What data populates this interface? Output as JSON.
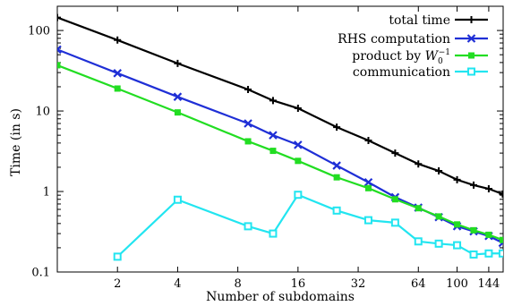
{
  "chart_data": {
    "type": "line",
    "title": "",
    "xlabel": "Number of subdomains",
    "ylabel": "Time (in s)",
    "xscale": "log",
    "yscale": "log",
    "xlim": [
      1,
      170
    ],
    "ylim": [
      0.1,
      200
    ],
    "xticks": [
      2,
      4,
      8,
      16,
      32,
      64,
      100,
      144
    ],
    "yticks": [
      0.1,
      1,
      10,
      100
    ],
    "ytick_labels": [
      "0.1",
      "1",
      "10",
      "100"
    ],
    "legend_position": "top-right",
    "grid": false,
    "series": [
      {
        "name": "total time",
        "color": "#000000",
        "marker": "plus",
        "x": [
          1,
          2,
          4,
          9,
          12,
          16,
          25,
          36,
          49,
          64,
          81,
          100,
          121,
          144,
          169
        ],
        "y": [
          145,
          76,
          39,
          18.5,
          13.5,
          10.8,
          6.3,
          4.3,
          3.0,
          2.2,
          1.8,
          1.4,
          1.2,
          1.08,
          0.93
        ]
      },
      {
        "name": "RHS computation",
        "color": "#1f2fd6",
        "marker": "x",
        "x": [
          1,
          2,
          4,
          9,
          12,
          16,
          25,
          36,
          49,
          64,
          81,
          100,
          121,
          144,
          169
        ],
        "y": [
          58,
          29.5,
          15,
          7.0,
          5.0,
          3.8,
          2.1,
          1.3,
          0.85,
          0.63,
          0.48,
          0.37,
          0.32,
          0.28,
          0.23
        ]
      },
      {
        "name": "product by W_0^{-1}",
        "label_main": "product by ",
        "label_var": "W",
        "label_sub": "0",
        "label_sup": "−1",
        "color": "#22dd22",
        "marker": "filled-square",
        "x": [
          1,
          2,
          4,
          9,
          12,
          16,
          25,
          36,
          49,
          64,
          81,
          100,
          121,
          144,
          169
        ],
        "y": [
          37,
          19,
          9.6,
          4.2,
          3.2,
          2.4,
          1.5,
          1.1,
          0.8,
          0.62,
          0.49,
          0.39,
          0.33,
          0.29,
          0.25
        ]
      },
      {
        "name": "communication",
        "color": "#22e5f0",
        "marker": "open-square",
        "x": [
          2,
          4,
          9,
          12,
          16,
          25,
          36,
          49,
          64,
          81,
          100,
          121,
          144,
          169
        ],
        "y": [
          0.155,
          0.79,
          0.37,
          0.3,
          0.91,
          0.58,
          0.44,
          0.41,
          0.24,
          0.225,
          0.215,
          0.165,
          0.17,
          0.17
        ]
      }
    ]
  }
}
